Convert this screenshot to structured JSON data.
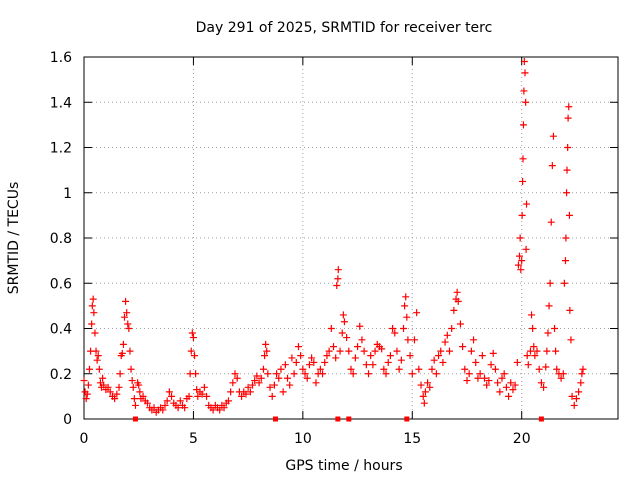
{
  "chart_data": {
    "type": "scatter",
    "title": "Day 291 of 2025, SRMTID for receiver terc",
    "xlabel": "GPS time / hours",
    "ylabel": "SRMTID / TECUs",
    "xlim": [
      0,
      24.4
    ],
    "ylim": [
      0,
      1.6
    ],
    "xticks": [
      0,
      5,
      10,
      15,
      20
    ],
    "xtick_labels": [
      "0",
      "5",
      "10",
      "15",
      "20"
    ],
    "yticks": [
      0,
      0.2,
      0.4,
      0.6,
      0.8,
      1.0,
      1.2,
      1.4,
      1.6
    ],
    "ytick_labels": [
      "0",
      "0.2",
      "0.4",
      "0.6",
      "0.8",
      "1",
      "1.2",
      "1.4",
      "1.6"
    ],
    "grid": true,
    "marker": "+",
    "color": "#ff0000",
    "series": [
      {
        "name": "SRMTID",
        "points": [
          [
            0.0,
            0.17
          ],
          [
            0.05,
            0.12
          ],
          [
            0.1,
            0.09
          ],
          [
            0.15,
            0.11
          ],
          [
            0.2,
            0.15
          ],
          [
            0.25,
            0.22
          ],
          [
            0.3,
            0.3
          ],
          [
            0.35,
            0.42
          ],
          [
            0.38,
            0.5
          ],
          [
            0.42,
            0.53
          ],
          [
            0.45,
            0.47
          ],
          [
            0.5,
            0.38
          ],
          [
            0.55,
            0.3
          ],
          [
            0.6,
            0.26
          ],
          [
            0.65,
            0.28
          ],
          [
            0.7,
            0.22
          ],
          [
            0.75,
            0.16
          ],
          [
            0.8,
            0.14
          ],
          [
            0.85,
            0.18
          ],
          [
            0.9,
            0.15
          ],
          [
            1.0,
            0.13
          ],
          [
            1.1,
            0.14
          ],
          [
            1.2,
            0.12
          ],
          [
            1.3,
            0.1
          ],
          [
            1.4,
            0.09
          ],
          [
            1.5,
            0.11
          ],
          [
            1.6,
            0.14
          ],
          [
            1.65,
            0.2
          ],
          [
            1.7,
            0.28
          ],
          [
            1.75,
            0.29
          ],
          [
            1.8,
            0.33
          ],
          [
            1.85,
            0.45
          ],
          [
            1.9,
            0.52
          ],
          [
            1.95,
            0.47
          ],
          [
            2.0,
            0.42
          ],
          [
            2.05,
            0.4
          ],
          [
            2.1,
            0.3
          ],
          [
            2.15,
            0.22
          ],
          [
            2.2,
            0.17
          ],
          [
            2.25,
            0.14
          ],
          [
            2.3,
            0.09
          ],
          [
            2.35,
            0.06
          ],
          [
            2.45,
            0.16
          ],
          [
            2.5,
            0.15
          ],
          [
            2.55,
            0.12
          ],
          [
            2.6,
            0.09
          ],
          [
            2.7,
            0.1
          ],
          [
            2.8,
            0.08
          ],
          [
            2.9,
            0.07
          ],
          [
            3.0,
            0.05
          ],
          [
            3.1,
            0.04
          ],
          [
            3.2,
            0.05
          ],
          [
            3.3,
            0.03
          ],
          [
            3.4,
            0.04
          ],
          [
            3.5,
            0.05
          ],
          [
            3.6,
            0.04
          ],
          [
            3.7,
            0.06
          ],
          [
            3.8,
            0.08
          ],
          [
            3.9,
            0.12
          ],
          [
            4.0,
            0.1
          ],
          [
            4.1,
            0.07
          ],
          [
            4.2,
            0.06
          ],
          [
            4.3,
            0.05
          ],
          [
            4.4,
            0.08
          ],
          [
            4.5,
            0.06
          ],
          [
            4.6,
            0.05
          ],
          [
            4.7,
            0.09
          ],
          [
            4.8,
            0.1
          ],
          [
            4.85,
            0.2
          ],
          [
            4.9,
            0.3
          ],
          [
            4.95,
            0.38
          ],
          [
            5.0,
            0.36
          ],
          [
            5.05,
            0.28
          ],
          [
            5.1,
            0.2
          ],
          [
            5.15,
            0.13
          ],
          [
            5.2,
            0.1
          ],
          [
            5.3,
            0.12
          ],
          [
            5.4,
            0.11
          ],
          [
            5.5,
            0.14
          ],
          [
            5.6,
            0.1
          ],
          [
            5.7,
            0.06
          ],
          [
            5.8,
            0.05
          ],
          [
            5.9,
            0.04
          ],
          [
            6.0,
            0.06
          ],
          [
            6.1,
            0.05
          ],
          [
            6.2,
            0.04
          ],
          [
            6.3,
            0.06
          ],
          [
            6.4,
            0.05
          ],
          [
            6.5,
            0.07
          ],
          [
            6.6,
            0.08
          ],
          [
            6.7,
            0.12
          ],
          [
            6.8,
            0.16
          ],
          [
            6.9,
            0.2
          ],
          [
            7.0,
            0.18
          ],
          [
            7.1,
            0.12
          ],
          [
            7.2,
            0.1
          ],
          [
            7.3,
            0.12
          ],
          [
            7.4,
            0.11
          ],
          [
            7.5,
            0.14
          ],
          [
            7.6,
            0.12
          ],
          [
            7.7,
            0.15
          ],
          [
            7.8,
            0.17
          ],
          [
            7.9,
            0.19
          ],
          [
            8.0,
            0.16
          ],
          [
            8.1,
            0.18
          ],
          [
            8.2,
            0.22
          ],
          [
            8.25,
            0.28
          ],
          [
            8.3,
            0.33
          ],
          [
            8.35,
            0.3
          ],
          [
            8.4,
            0.2
          ],
          [
            8.5,
            0.14
          ],
          [
            8.6,
            0.1
          ],
          [
            8.7,
            0.15
          ],
          [
            8.8,
            0.2
          ],
          [
            8.9,
            0.18
          ],
          [
            9.0,
            0.22
          ],
          [
            9.1,
            0.12
          ],
          [
            9.2,
            0.24
          ],
          [
            9.3,
            0.18
          ],
          [
            9.4,
            0.15
          ],
          [
            9.5,
            0.27
          ],
          [
            9.6,
            0.2
          ],
          [
            9.7,
            0.25
          ],
          [
            9.8,
            0.32
          ],
          [
            9.9,
            0.28
          ],
          [
            10.0,
            0.22
          ],
          [
            10.1,
            0.2
          ],
          [
            10.2,
            0.18
          ],
          [
            10.3,
            0.24
          ],
          [
            10.4,
            0.27
          ],
          [
            10.5,
            0.25
          ],
          [
            10.6,
            0.16
          ],
          [
            10.7,
            0.2
          ],
          [
            10.8,
            0.22
          ],
          [
            10.9,
            0.2
          ],
          [
            11.0,
            0.25
          ],
          [
            11.1,
            0.28
          ],
          [
            11.2,
            0.3
          ],
          [
            11.3,
            0.4
          ],
          [
            11.4,
            0.32
          ],
          [
            11.5,
            0.27
          ],
          [
            11.55,
            0.59
          ],
          [
            11.6,
            0.62
          ],
          [
            11.62,
            0.66
          ],
          [
            11.7,
            0.3
          ],
          [
            11.8,
            0.38
          ],
          [
            11.85,
            0.46
          ],
          [
            11.9,
            0.43
          ],
          [
            12.0,
            0.36
          ],
          [
            12.1,
            0.3
          ],
          [
            12.2,
            0.22
          ],
          [
            12.3,
            0.2
          ],
          [
            12.4,
            0.27
          ],
          [
            12.5,
            0.32
          ],
          [
            12.6,
            0.41
          ],
          [
            12.7,
            0.35
          ],
          [
            12.8,
            0.3
          ],
          [
            12.9,
            0.24
          ],
          [
            13.0,
            0.2
          ],
          [
            13.1,
            0.28
          ],
          [
            13.2,
            0.24
          ],
          [
            13.3,
            0.3
          ],
          [
            13.4,
            0.33
          ],
          [
            13.5,
            0.32
          ],
          [
            13.6,
            0.31
          ],
          [
            13.7,
            0.22
          ],
          [
            13.8,
            0.2
          ],
          [
            13.9,
            0.25
          ],
          [
            14.0,
            0.28
          ],
          [
            14.1,
            0.4
          ],
          [
            14.2,
            0.38
          ],
          [
            14.3,
            0.3
          ],
          [
            14.4,
            0.22
          ],
          [
            14.5,
            0.26
          ],
          [
            14.6,
            0.4
          ],
          [
            14.65,
            0.5
          ],
          [
            14.7,
            0.54
          ],
          [
            14.75,
            0.45
          ],
          [
            14.8,
            0.35
          ],
          [
            14.9,
            0.28
          ],
          [
            15.0,
            0.2
          ],
          [
            15.1,
            0.35
          ],
          [
            15.2,
            0.47
          ],
          [
            15.3,
            0.22
          ],
          [
            15.4,
            0.15
          ],
          [
            15.5,
            0.1
          ],
          [
            15.55,
            0.07
          ],
          [
            15.6,
            0.12
          ],
          [
            15.7,
            0.16
          ],
          [
            15.8,
            0.14
          ],
          [
            15.9,
            0.22
          ],
          [
            16.0,
            0.26
          ],
          [
            16.1,
            0.2
          ],
          [
            16.2,
            0.28
          ],
          [
            16.3,
            0.3
          ],
          [
            16.4,
            0.25
          ],
          [
            16.5,
            0.34
          ],
          [
            16.6,
            0.37
          ],
          [
            16.7,
            0.3
          ],
          [
            16.8,
            0.4
          ],
          [
            16.9,
            0.48
          ],
          [
            17.0,
            0.53
          ],
          [
            17.05,
            0.56
          ],
          [
            17.1,
            0.52
          ],
          [
            17.2,
            0.42
          ],
          [
            17.3,
            0.32
          ],
          [
            17.4,
            0.22
          ],
          [
            17.5,
            0.17
          ],
          [
            17.6,
            0.2
          ],
          [
            17.7,
            0.3
          ],
          [
            17.8,
            0.35
          ],
          [
            17.9,
            0.25
          ],
          [
            18.0,
            0.18
          ],
          [
            18.1,
            0.2
          ],
          [
            18.2,
            0.28
          ],
          [
            18.3,
            0.18
          ],
          [
            18.4,
            0.15
          ],
          [
            18.5,
            0.17
          ],
          [
            18.6,
            0.24
          ],
          [
            18.7,
            0.29
          ],
          [
            18.8,
            0.22
          ],
          [
            18.9,
            0.16
          ],
          [
            19.0,
            0.12
          ],
          [
            19.1,
            0.18
          ],
          [
            19.2,
            0.2
          ],
          [
            19.3,
            0.14
          ],
          [
            19.4,
            0.1
          ],
          [
            19.5,
            0.16
          ],
          [
            19.6,
            0.13
          ],
          [
            19.7,
            0.15
          ],
          [
            19.8,
            0.25
          ],
          [
            19.85,
            0.68
          ],
          [
            19.9,
            0.72
          ],
          [
            19.93,
            0.8
          ],
          [
            19.96,
            0.66
          ],
          [
            20.0,
            0.7
          ],
          [
            20.02,
            0.9
          ],
          [
            20.04,
            1.05
          ],
          [
            20.06,
            1.15
          ],
          [
            20.08,
            1.3
          ],
          [
            20.1,
            1.45
          ],
          [
            20.12,
            1.58
          ],
          [
            20.15,
            1.53
          ],
          [
            20.18,
            1.4
          ],
          [
            20.2,
            0.75
          ],
          [
            20.22,
            0.95
          ],
          [
            20.25,
            0.28
          ],
          [
            20.3,
            0.24
          ],
          [
            20.4,
            0.3
          ],
          [
            20.45,
            0.46
          ],
          [
            20.5,
            0.4
          ],
          [
            20.55,
            0.32
          ],
          [
            20.6,
            0.28
          ],
          [
            20.7,
            0.3
          ],
          [
            20.8,
            0.22
          ],
          [
            20.9,
            0.16
          ],
          [
            21.0,
            0.14
          ],
          [
            21.1,
            0.23
          ],
          [
            21.15,
            0.3
          ],
          [
            21.2,
            0.38
          ],
          [
            21.25,
            0.5
          ],
          [
            21.3,
            0.6
          ],
          [
            21.35,
            0.87
          ],
          [
            21.4,
            1.12
          ],
          [
            21.45,
            1.25
          ],
          [
            21.5,
            0.4
          ],
          [
            21.55,
            0.3
          ],
          [
            21.6,
            0.22
          ],
          [
            21.7,
            0.2
          ],
          [
            21.8,
            0.18
          ],
          [
            21.9,
            0.2
          ],
          [
            21.95,
            0.6
          ],
          [
            22.0,
            0.7
          ],
          [
            22.02,
            0.8
          ],
          [
            22.05,
            1.0
          ],
          [
            22.07,
            1.1
          ],
          [
            22.1,
            1.2
          ],
          [
            22.12,
            1.33
          ],
          [
            22.15,
            1.38
          ],
          [
            22.18,
            0.9
          ],
          [
            22.2,
            0.48
          ],
          [
            22.25,
            0.35
          ],
          [
            22.3,
            0.1
          ],
          [
            22.4,
            0.06
          ],
          [
            22.5,
            0.09
          ],
          [
            22.6,
            0.12
          ],
          [
            22.7,
            0.16
          ],
          [
            22.75,
            0.2
          ],
          [
            22.8,
            0.22
          ]
        ]
      }
    ],
    "zero_markers_x": [
      2.35,
      8.75,
      11.6,
      12.1,
      14.75,
      20.9
    ]
  }
}
